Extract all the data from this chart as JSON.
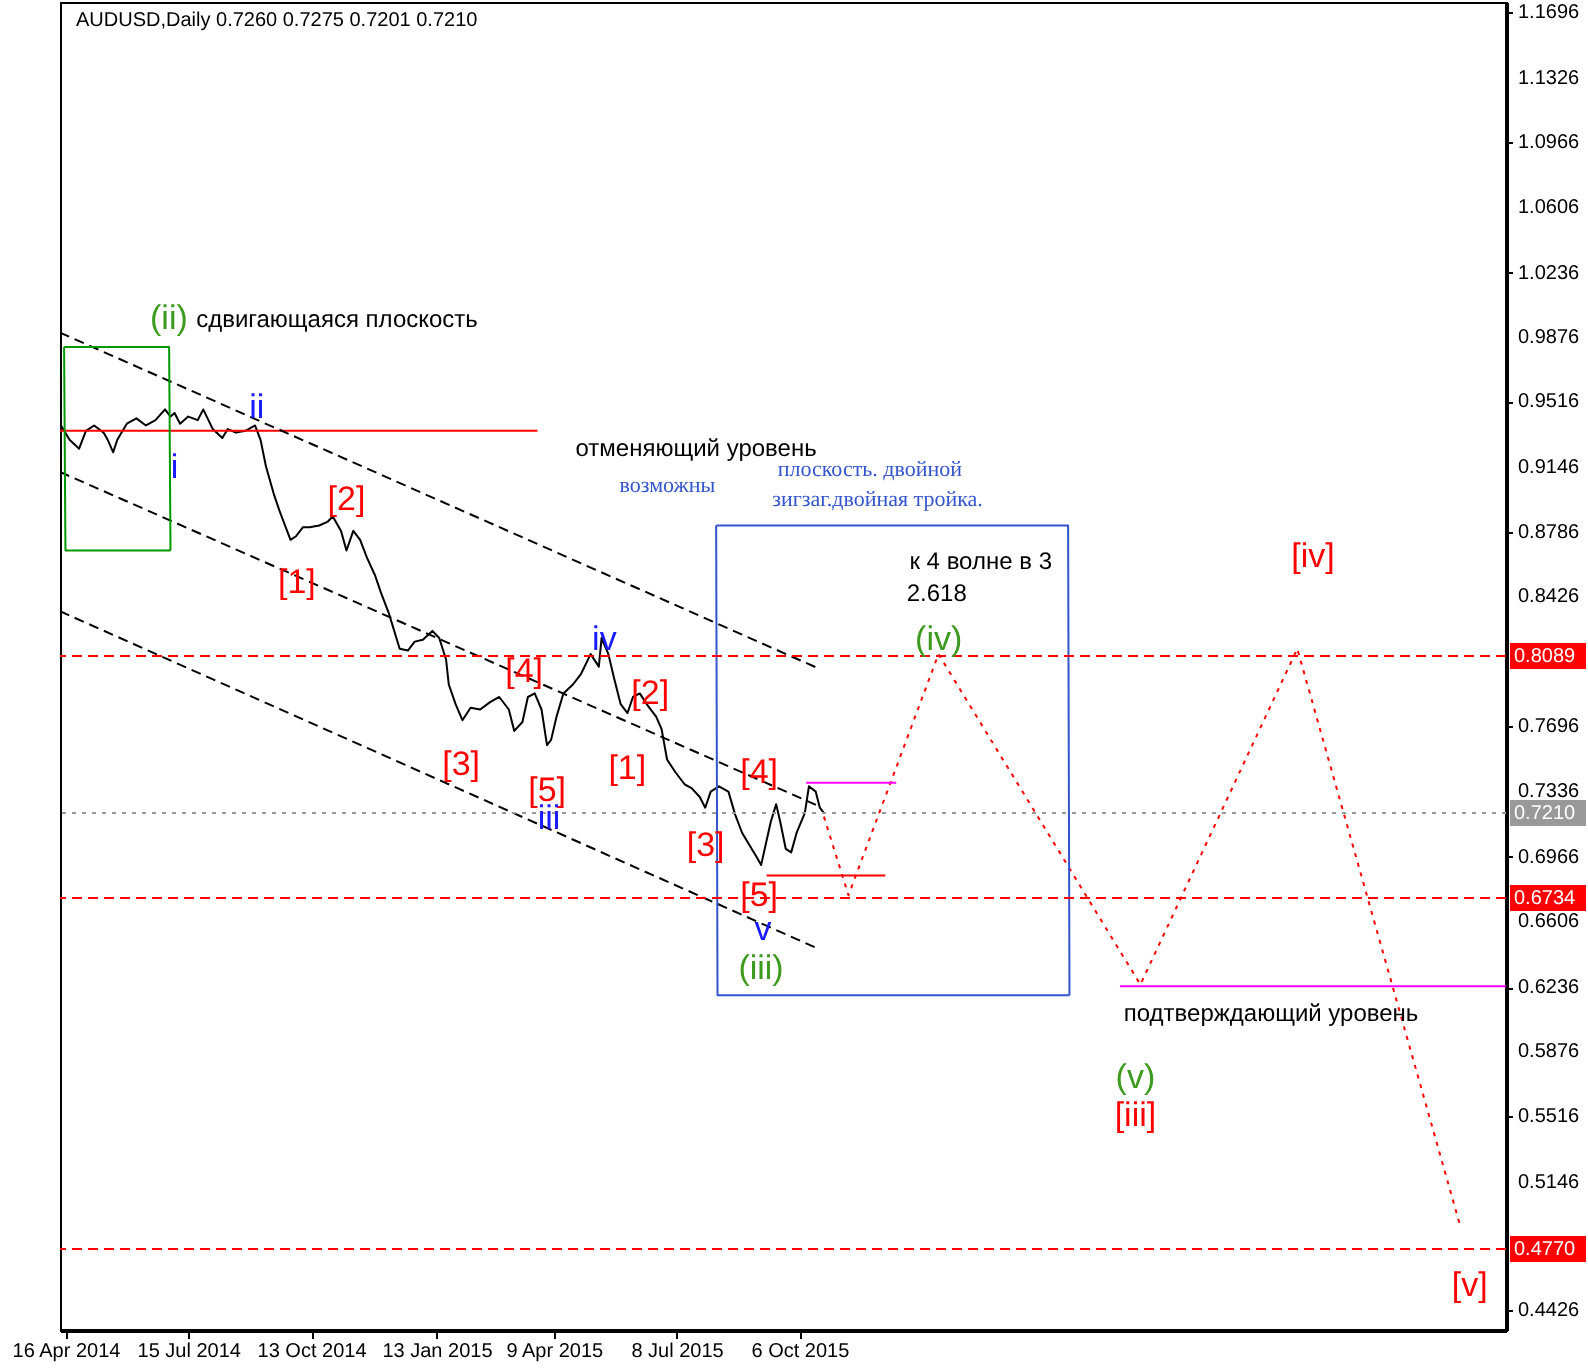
{
  "chart_data": {
    "type": "line",
    "title": "AUDUSD,Daily  0.7260 0.7275 0.7201 0.7210",
    "xlim": [
      "2014-04-12",
      "2017-03-07"
    ],
    "ylim": [
      0.4316,
      1.1751
    ],
    "xticks": [
      {
        "value": "2014-04-16",
        "label": "16 Apr 2014"
      },
      {
        "value": "2014-07-15",
        "label": "15 Jul 2014"
      },
      {
        "value": "2014-10-13",
        "label": "13 Oct 2014"
      },
      {
        "value": "2015-01-13",
        "label": "13 Jan 2015"
      },
      {
        "value": "2015-04-09",
        "label": "9 Apr 2015"
      },
      {
        "value": "2015-07-08",
        "label": "8 Jul 2015"
      },
      {
        "value": "2015-10-06",
        "label": "6 Oct 2015"
      }
    ],
    "yticks": [
      1.1696,
      1.1326,
      1.0966,
      1.0606,
      1.0236,
      0.9876,
      0.9516,
      0.9146,
      0.8786,
      0.8426,
      0.7696,
      0.7336,
      0.6966,
      0.6606,
      0.6236,
      0.5876,
      0.5516,
      0.5146,
      0.4426
    ],
    "grid": false,
    "series": [
      {
        "color": "#000000",
        "line_style": "solid",
        "x": [
          "2014-04-12",
          "2014-04-19",
          "2014-04-26",
          "2014-05-01",
          "2014-05-07",
          "2014-05-14",
          "2014-05-17",
          "2014-05-21",
          "2014-05-24",
          "2014-05-31",
          "2014-06-07",
          "2014-06-14",
          "2014-06-21",
          "2014-06-28",
          "2014-07-02",
          "2014-07-05",
          "2014-07-09",
          "2014-07-15",
          "2014-07-22",
          "2014-07-26",
          "2014-08-02",
          "2014-08-09",
          "2014-08-13",
          "2014-08-19",
          "2014-08-26",
          "2014-09-02",
          "2014-09-06",
          "2014-09-10",
          "2014-09-16",
          "2014-09-20",
          "2014-09-24",
          "2014-09-28",
          "2014-10-02",
          "2014-10-07",
          "2014-10-12",
          "2014-10-19",
          "2014-10-25",
          "2014-10-29",
          "2014-11-04",
          "2014-11-08",
          "2014-11-13",
          "2014-11-18",
          "2014-11-23",
          "2014-11-29",
          "2014-12-03",
          "2014-12-09",
          "2014-12-13",
          "2014-12-17",
          "2014-12-23",
          "2014-12-28",
          "2015-01-03",
          "2015-01-10",
          "2015-01-15",
          "2015-01-20",
          "2015-01-22",
          "2015-01-27",
          "2015-02-01",
          "2015-02-07",
          "2015-02-14",
          "2015-02-21",
          "2015-02-28",
          "2015-03-07",
          "2015-03-11",
          "2015-03-17",
          "2015-03-21",
          "2015-03-26",
          "2015-03-31",
          "2015-04-04",
          "2015-04-07",
          "2015-04-11",
          "2015-04-16",
          "2015-04-23",
          "2015-04-29",
          "2015-05-06",
          "2015-05-12",
          "2015-05-14",
          "2015-05-19",
          "2015-05-23",
          "2015-05-28",
          "2015-06-02",
          "2015-06-06",
          "2015-06-11",
          "2015-06-17",
          "2015-06-23",
          "2015-06-27",
          "2015-07-01",
          "2015-07-07",
          "2015-07-14",
          "2015-07-19",
          "2015-07-25",
          "2015-07-29",
          "2015-08-02",
          "2015-08-08",
          "2015-08-15",
          "2015-08-20",
          "2015-08-25",
          "2015-09-01",
          "2015-09-05",
          "2015-09-08",
          "2015-09-15",
          "2015-09-19",
          "2015-09-22",
          "2015-09-26",
          "2015-09-30",
          "2015-10-04",
          "2015-10-10",
          "2015-10-13",
          "2015-10-18",
          "2015-10-21",
          "2015-10-24"
        ],
        "values": [
          0.939,
          0.93,
          0.925,
          0.935,
          0.938,
          0.934,
          0.93,
          0.923,
          0.93,
          0.939,
          0.942,
          0.938,
          0.941,
          0.947,
          0.943,
          0.945,
          0.939,
          0.943,
          0.941,
          0.947,
          0.936,
          0.931,
          0.936,
          0.934,
          0.935,
          0.938,
          0.93,
          0.915,
          0.899,
          0.89,
          0.882,
          0.874,
          0.876,
          0.881,
          0.881,
          0.882,
          0.884,
          0.887,
          0.879,
          0.868,
          0.879,
          0.874,
          0.864,
          0.854,
          0.845,
          0.833,
          0.823,
          0.813,
          0.812,
          0.817,
          0.818,
          0.823,
          0.819,
          0.807,
          0.793,
          0.782,
          0.773,
          0.78,
          0.779,
          0.783,
          0.786,
          0.779,
          0.767,
          0.772,
          0.786,
          0.788,
          0.779,
          0.759,
          0.762,
          0.775,
          0.788,
          0.793,
          0.799,
          0.81,
          0.803,
          0.819,
          0.81,
          0.797,
          0.782,
          0.777,
          0.786,
          0.788,
          0.781,
          0.775,
          0.768,
          0.751,
          0.744,
          0.737,
          0.735,
          0.73,
          0.724,
          0.733,
          0.736,
          0.733,
          0.72,
          0.71,
          0.701,
          0.696,
          0.692,
          0.716,
          0.726,
          0.716,
          0.701,
          0.699,
          0.71,
          0.721,
          0.736,
          0.733,
          0.724,
          0.721
        ]
      },
      {
        "type": "line",
        "color": "#ff0000",
        "line_style": "dotted",
        "x": [
          "2015-10-24",
          "2015-11-11",
          "2016-01-16",
          "2016-06-12",
          "2016-10-05",
          "2017-02-01"
        ],
        "values": [
          0.719,
          0.675,
          0.81,
          0.625,
          0.813,
          0.491
        ]
      },
      {
        "type": "line",
        "color": "#ff0000",
        "line_style": "solid",
        "x": [
          "2014-04-12",
          "2015-03-28"
        ],
        "values": [
          0.935,
          0.935
        ]
      },
      {
        "type": "line",
        "color": "#ff00ff",
        "line_style": "solid",
        "x": [
          "2015-10-11",
          "2015-12-16"
        ],
        "values": [
          0.738,
          0.738
        ]
      },
      {
        "type": "line",
        "color": "#ff0000",
        "line_style": "solid",
        "x": [
          "2015-09-12",
          "2015-12-08"
        ],
        "values": [
          0.686,
          0.686
        ]
      },
      {
        "type": "line",
        "color": "#ff00ff",
        "line_style": "solid",
        "x": [
          "2016-05-28",
          "2017-03-07"
        ],
        "values": [
          0.624,
          0.624
        ]
      },
      {
        "type": "line",
        "color": "#000000",
        "line_style": "dashed",
        "x": [
          "2014-04-12",
          "2015-10-20"
        ],
        "values": [
          0.99,
          0.802
        ]
      },
      {
        "type": "line",
        "color": "#000000",
        "line_style": "dashed",
        "x": [
          "2014-04-12",
          "2015-10-20"
        ],
        "values": [
          0.912,
          0.725
        ]
      },
      {
        "type": "line",
        "color": "#000000",
        "line_style": "dashed",
        "x": [
          "2014-04-12",
          "2015-10-20"
        ],
        "values": [
          0.834,
          0.645
        ]
      },
      {
        "type": "line",
        "color": "#009900",
        "line_style": "solid",
        "x": [
          "2014-04-15",
          "2014-07-01",
          "2014-07-02"
        ],
        "values": [
          0.982,
          0.982,
          0.868
        ]
      },
      {
        "type": "line",
        "color": "#009900",
        "line_style": "solid",
        "x": [
          "2014-04-15",
          "2014-04-16",
          "2014-07-02"
        ],
        "values": [
          0.982,
          0.868,
          0.868
        ]
      },
      {
        "type": "line",
        "color": "#3355cc",
        "line_style": "solid",
        "x": [
          "2015-08-06",
          "2016-04-20",
          "2016-04-21"
        ],
        "values": [
          0.882,
          0.882,
          0.619
        ]
      },
      {
        "type": "line",
        "color": "#3355cc",
        "line_style": "solid",
        "x": [
          "2015-08-06",
          "2015-08-07",
          "2016-04-21"
        ],
        "values": [
          0.882,
          0.619,
          0.619
        ]
      }
    ],
    "ref_lines": [
      {
        "axis": "y",
        "value": 0.8089,
        "label": "0.8089",
        "color": "#ff0000",
        "line_style": "dashed"
      },
      {
        "axis": "y",
        "value": 0.721,
        "label": "0.7210",
        "color": "#999999",
        "line_style": "dotted"
      },
      {
        "axis": "y",
        "value": 0.6734,
        "label": "0.6734",
        "color": "#ff0000",
        "line_style": "dashed"
      },
      {
        "axis": "y",
        "value": 0.477,
        "label": "0.4770",
        "color": "#ff0000",
        "line_style": "dashed"
      }
    ],
    "annotations": [
      "сдвигающаяся плоскость",
      "отменяющий уровень",
      "возможны",
      "плоскость. двойной",
      "зигзаг.двойная тройка.",
      "к 4 волне в 3",
      "2.618",
      "подтверждающий уровень",
      "(ii)",
      "i",
      "ii",
      "[2]",
      "[1]",
      "[4]",
      "iv",
      "[2]",
      "[3]",
      "[1]",
      "[5]",
      "iii",
      "[4]",
      "[3]",
      "[5]",
      "v",
      "(iii)",
      "(iv)",
      "[iv]",
      "(v)",
      "[iii]",
      "[v]"
    ]
  }
}
